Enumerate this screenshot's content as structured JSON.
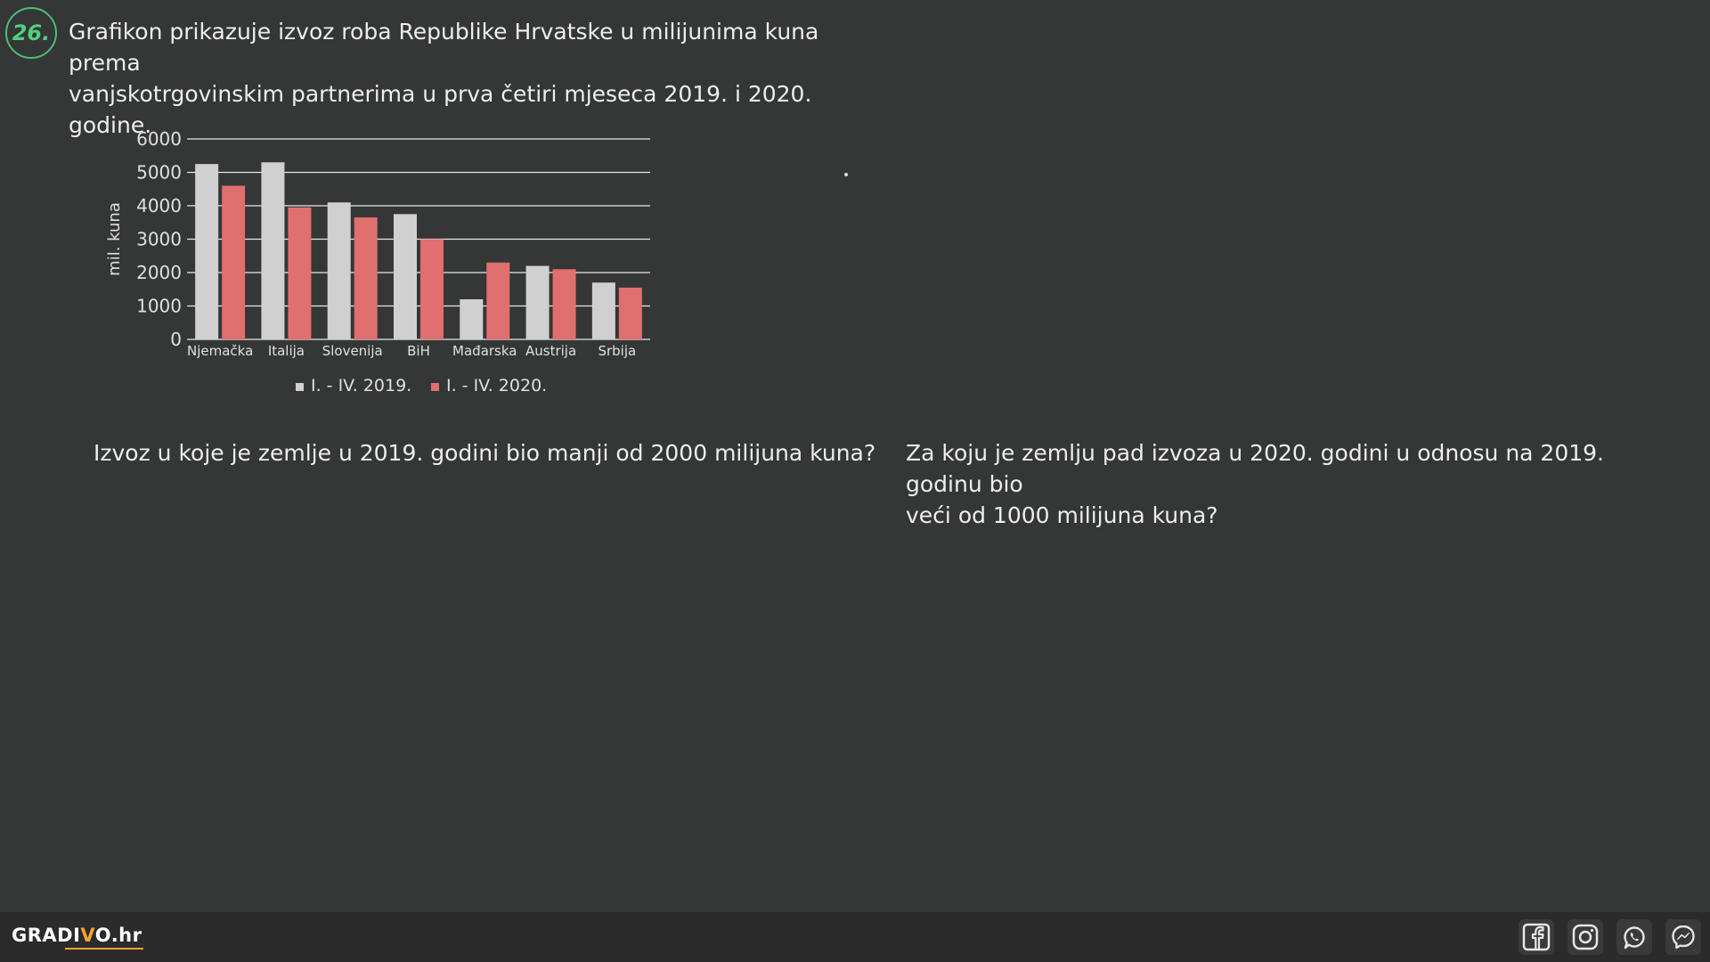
{
  "task": {
    "number": "26.",
    "text_line1": "Grafikon prikazuje izvoz roba Republike Hrvatske u milijunima kuna prema",
    "text_line2": "vanjskotrgovinskim partnerima u prva četiri mjeseca 2019. i 2020. godine."
  },
  "questions": {
    "q1": "Izvoz u koje je zemlje u 2019. godini bio manji od 2000 milijuna kuna?",
    "q2_line1": "Za koju je zemlju pad izvoza u 2020. godini u odnosu na 2019. godinu bio",
    "q2_line2": "veći od 1000 milijuna kuna?"
  },
  "chart_data": {
    "type": "bar",
    "categories": [
      "Njemačka",
      "Italija",
      "Slovenija",
      "BiH",
      "Mađarska",
      "Austrija",
      "Srbija"
    ],
    "series": [
      {
        "name": "I. - IV. 2019.",
        "values": [
          5250,
          5300,
          4100,
          3750,
          1200,
          2200,
          1700
        ],
        "color": "#d0d0d0"
      },
      {
        "name": "I. - IV. 2020.",
        "values": [
          4600,
          3950,
          3650,
          3000,
          2300,
          2100,
          1550
        ],
        "color": "#e06f6f"
      }
    ],
    "ylabel": "mil. kuna",
    "ylim": [
      0,
      6000
    ],
    "yticks": [
      "0",
      "1000",
      "2000",
      "3000",
      "4000",
      "5000",
      "6000"
    ],
    "grid": true,
    "legend_position": "bottom"
  },
  "footer": {
    "brand_prefix": "GRADI",
    "brand_v": "V",
    "brand_suffix": "O.hr"
  },
  "social_icons": [
    "facebook-icon",
    "instagram-icon",
    "whatsapp-icon",
    "messenger-icon"
  ]
}
